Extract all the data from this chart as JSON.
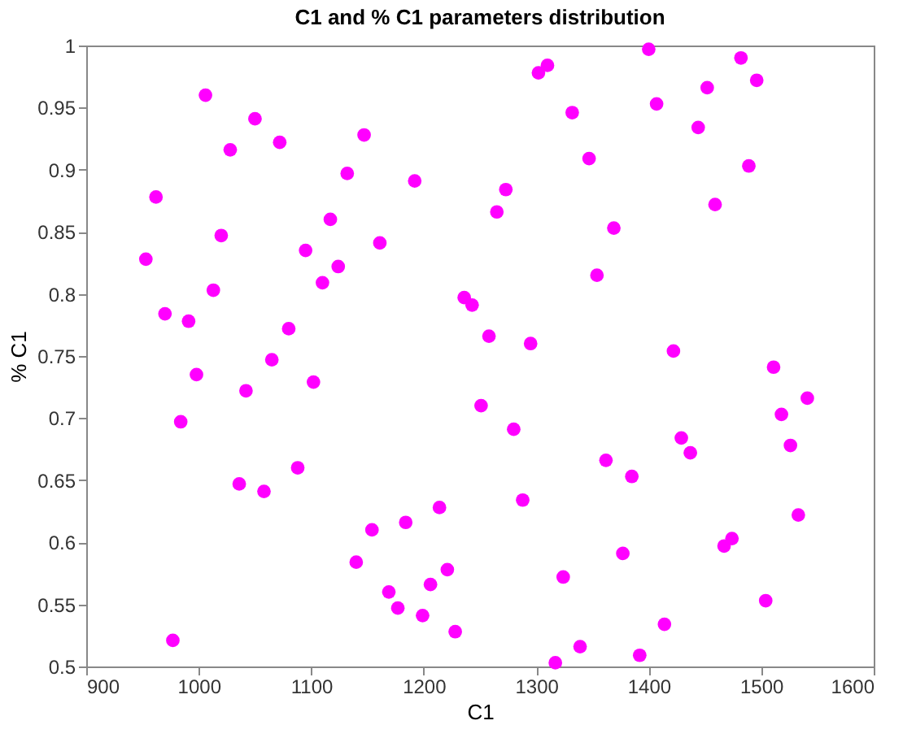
{
  "chart_data": {
    "type": "scatter",
    "title": "C1 and % C1 parameters distribution",
    "xlabel": "C1",
    "ylabel": "% C1",
    "x": [
      953,
      962,
      970,
      977,
      984,
      991,
      998,
      1006,
      1013,
      1020,
      1028,
      1036,
      1042,
      1050,
      1058,
      1065,
      1072,
      1080,
      1088,
      1095,
      1102,
      1110,
      1117,
      1124,
      1132,
      1140,
      1147,
      1154,
      1161,
      1169,
      1177,
      1184,
      1192,
      1199,
      1206,
      1214,
      1221,
      1228,
      1236,
      1243,
      1251,
      1258,
      1265,
      1273,
      1280,
      1288,
      1295,
      1302,
      1310,
      1317,
      1324,
      1332,
      1339,
      1347,
      1354,
      1362,
      1369,
      1377,
      1385,
      1392,
      1400,
      1407,
      1414,
      1422,
      1429,
      1437,
      1444,
      1452,
      1459,
      1467,
      1474,
      1482,
      1489,
      1496,
      1504,
      1511,
      1518,
      1526,
      1533,
      1541
    ],
    "series": [
      {
        "color": "#ff00ff",
        "values": [
          0.828,
          0.878,
          0.784,
          0.521,
          0.697,
          0.778,
          0.735,
          0.96,
          0.803,
          0.847,
          0.916,
          0.647,
          0.722,
          0.941,
          0.641,
          0.747,
          0.922,
          0.772,
          0.66,
          0.835,
          0.729,
          0.809,
          0.86,
          0.822,
          0.897,
          0.584,
          0.928,
          0.61,
          0.841,
          0.56,
          0.547,
          0.616,
          0.891,
          0.541,
          0.566,
          0.628,
          0.578,
          0.528,
          0.797,
          0.791,
          0.71,
          0.766,
          0.866,
          0.884,
          0.691,
          0.634,
          0.76,
          0.978,
          0.984,
          0.503,
          0.572,
          0.946,
          0.516,
          0.909,
          0.815,
          0.666,
          0.853,
          0.591,
          0.653,
          0.509,
          0.997,
          0.953,
          0.534,
          0.754,
          0.684,
          0.672,
          0.934,
          0.966,
          0.872,
          0.597,
          0.603,
          0.99,
          0.903,
          0.972,
          0.553,
          0.741,
          0.703,
          0.678,
          0.622,
          0.716
        ]
      }
    ],
    "xlim": [
      900,
      1600
    ],
    "xticks": [
      900,
      1000,
      1100,
      1200,
      1300,
      1400,
      1500,
      1600
    ],
    "ylim": [
      0.5,
      1
    ],
    "yticks": [
      0.5,
      0.55,
      0.6,
      0.65,
      0.7,
      0.75,
      0.8,
      0.85,
      0.9,
      0.95,
      1
    ],
    "marker": "circle",
    "grid": false
  }
}
